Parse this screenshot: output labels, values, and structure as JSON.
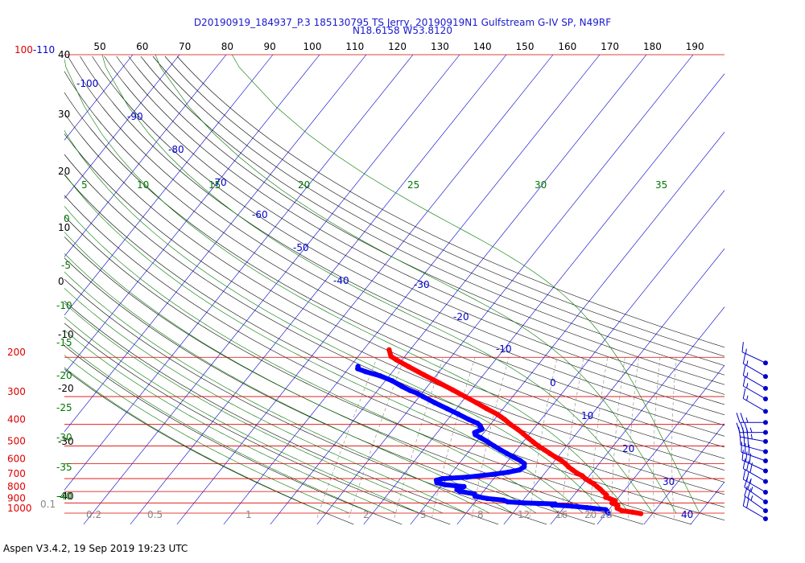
{
  "title_line1": "D20190919_184937_P.3 185130795 TS Jerry, 20190919N1 Gulfstream G-IV SP, N49RF",
  "title_line2": "N18.6158 W53.8120",
  "footer": "Aspen V3.4.2, 19 Sep 2019  19:23 UTC",
  "colors": {
    "isobar": "#dd0000",
    "isotherm": "#0000cc",
    "dry_adiabat": "#000000",
    "moist_adiabat": "#007700",
    "mixing_ratio": "#888888",
    "temperature": "#ff0000",
    "dewpoint": "#0000ff",
    "wind_barb": "#0000cc"
  },
  "chart_data": {
    "type": "skew-t",
    "pressure_range_hpa": [
      1000,
      100
    ],
    "pressure_labels": [
      "1000",
      "900",
      "800",
      "700",
      "600",
      "500",
      "400",
      "300",
      "200",
      "100-110"
    ],
    "top_tick_labels": [
      "50",
      "60",
      "70",
      "80",
      "90",
      "100",
      "110",
      "120",
      "130",
      "140",
      "150",
      "160",
      "170",
      "180",
      "190"
    ],
    "height_labels_left": [
      "40",
      "30",
      "20",
      "10",
      "0",
      "-10",
      "-20",
      "-30",
      "-40"
    ],
    "isotherm_labels": [
      "-100",
      "-90",
      "-80",
      "-70",
      "-60",
      "-50",
      "-40",
      "-30",
      "-20",
      "-10",
      "0",
      "10",
      "20",
      "30",
      "40"
    ],
    "moist_adiabat_labels_top": [
      "5",
      "10",
      "15",
      "20",
      "25",
      "30",
      "35"
    ],
    "moist_adiabat_labels_left": [
      "0",
      "-5",
      "-10",
      "-15",
      "-20",
      "-25",
      "-30",
      "-35",
      "-40"
    ],
    "mixing_ratio_labels": [
      "0.1",
      "0.2",
      "0.5",
      "1",
      "2",
      "5",
      "8",
      "12",
      "16",
      "20",
      "28"
    ],
    "temperature_profile": [
      {
        "p": 1005,
        "t": 27.5
      },
      {
        "p": 990,
        "t": 25.5
      },
      {
        "p": 975,
        "t": 23.0
      },
      {
        "p": 950,
        "t": 21.5
      },
      {
        "p": 925,
        "t": 21.2
      },
      {
        "p": 900,
        "t": 19.5
      },
      {
        "p": 880,
        "t": 19.8
      },
      {
        "p": 860,
        "t": 18.2
      },
      {
        "p": 850,
        "t": 17.2
      },
      {
        "p": 830,
        "t": 17.0
      },
      {
        "p": 800,
        "t": 15.5
      },
      {
        "p": 780,
        "t": 14.6
      },
      {
        "p": 760,
        "t": 13.5
      },
      {
        "p": 740,
        "t": 12.4
      },
      {
        "p": 720,
        "t": 11.0
      },
      {
        "p": 700,
        "t": 9.6
      },
      {
        "p": 680,
        "t": 8.5
      },
      {
        "p": 660,
        "t": 6.8
      },
      {
        "p": 640,
        "t": 5.4
      },
      {
        "p": 620,
        "t": 4.0
      },
      {
        "p": 600,
        "t": 2.8
      },
      {
        "p": 580,
        "t": 1.3
      },
      {
        "p": 560,
        "t": -0.5
      },
      {
        "p": 540,
        "t": -2.3
      },
      {
        "p": 520,
        "t": -4.1
      },
      {
        "p": 500,
        "t": -6.0
      },
      {
        "p": 480,
        "t": -7.8
      },
      {
        "p": 460,
        "t": -9.6
      },
      {
        "p": 440,
        "t": -11.4
      },
      {
        "p": 420,
        "t": -13.4
      },
      {
        "p": 400,
        "t": -15.7
      },
      {
        "p": 380,
        "t": -17.8
      },
      {
        "p": 360,
        "t": -20.3
      },
      {
        "p": 340,
        "t": -23.5
      },
      {
        "p": 320,
        "t": -26.7
      },
      {
        "p": 300,
        "t": -30.2
      },
      {
        "p": 280,
        "t": -34.0
      },
      {
        "p": 260,
        "t": -38.2
      },
      {
        "p": 240,
        "t": -42.7
      },
      {
        "p": 220,
        "t": -47.5
      },
      {
        "p": 205,
        "t": -51.3
      },
      {
        "p": 198,
        "t": -53.0
      },
      {
        "p": 185,
        "t": -54.5
      }
    ],
    "dewpoint_profile": [
      {
        "p": 1000,
        "t": 20.5
      },
      {
        "p": 985,
        "t": 20.0
      },
      {
        "p": 965,
        "t": 19.3
      },
      {
        "p": 945,
        "t": 15.0
      },
      {
        "p": 930,
        "t": 11.5
      },
      {
        "p": 918,
        "t": 7.0
      },
      {
        "p": 910,
        "t": 7.5
      },
      {
        "p": 900,
        "t": 0.5
      },
      {
        "p": 890,
        "t": -3.0
      },
      {
        "p": 875,
        "t": -4.2
      },
      {
        "p": 860,
        "t": -8.0
      },
      {
        "p": 840,
        "t": -11.0
      },
      {
        "p": 820,
        "t": -11.5
      },
      {
        "p": 800,
        "t": -15.0
      },
      {
        "p": 785,
        "t": -16.0
      },
      {
        "p": 760,
        "t": -15.0
      },
      {
        "p": 745,
        "t": -19.5
      },
      {
        "p": 730,
        "t": -21.5
      },
      {
        "p": 712,
        "t": -22.0
      },
      {
        "p": 700,
        "t": -21.0
      },
      {
        "p": 690,
        "t": -16.0
      },
      {
        "p": 670,
        "t": -11.0
      },
      {
        "p": 655,
        "t": -8.0
      },
      {
        "p": 640,
        "t": -6.0
      },
      {
        "p": 620,
        "t": -5.5
      },
      {
        "p": 600,
        "t": -6.0
      },
      {
        "p": 580,
        "t": -7.5
      },
      {
        "p": 560,
        "t": -9.5
      },
      {
        "p": 540,
        "t": -11.5
      },
      {
        "p": 520,
        "t": -13.5
      },
      {
        "p": 500,
        "t": -15.5
      },
      {
        "p": 480,
        "t": -17.5
      },
      {
        "p": 460,
        "t": -19.7
      },
      {
        "p": 445,
        "t": -21.5
      },
      {
        "p": 435,
        "t": -22.0
      },
      {
        "p": 420,
        "t": -21.0
      },
      {
        "p": 405,
        "t": -22.0
      },
      {
        "p": 395,
        "t": -23.0
      },
      {
        "p": 380,
        "t": -25.5
      },
      {
        "p": 360,
        "t": -28.6
      },
      {
        "p": 340,
        "t": -32.0
      },
      {
        "p": 320,
        "t": -35.6
      },
      {
        "p": 300,
        "t": -39.2
      },
      {
        "p": 290,
        "t": -41.0
      },
      {
        "p": 282,
        "t": -43.0
      },
      {
        "p": 270,
        "t": -45.5
      },
      {
        "p": 255,
        "t": -48.5
      },
      {
        "p": 242,
        "t": -52.0
      },
      {
        "p": 232,
        "t": -55.8
      },
      {
        "p": 225,
        "t": -58.0
      },
      {
        "p": 220,
        "t": -58.3
      }
    ],
    "wind_barbs": [
      {
        "p": 200,
        "dir": 295,
        "kt": 15
      },
      {
        "p": 230,
        "dir": 300,
        "kt": 15
      },
      {
        "p": 260,
        "dir": 300,
        "kt": 15
      },
      {
        "p": 290,
        "dir": 300,
        "kt": 15
      },
      {
        "p": 330,
        "dir": 300,
        "kt": 15
      },
      {
        "p": 370,
        "dir": 270,
        "kt": 25
      },
      {
        "p": 410,
        "dir": 270,
        "kt": 35
      },
      {
        "p": 450,
        "dir": 280,
        "kt": 35
      },
      {
        "p": 500,
        "dir": 285,
        "kt": 30
      },
      {
        "p": 550,
        "dir": 290,
        "kt": 30
      },
      {
        "p": 610,
        "dir": 295,
        "kt": 30
      },
      {
        "p": 680,
        "dir": 300,
        "kt": 30
      },
      {
        "p": 760,
        "dir": 300,
        "kt": 25
      },
      {
        "p": 840,
        "dir": 305,
        "kt": 25
      },
      {
        "p": 920,
        "dir": 305,
        "kt": 25
      },
      {
        "p": 1000,
        "dir": 300,
        "kt": 20
      }
    ]
  }
}
